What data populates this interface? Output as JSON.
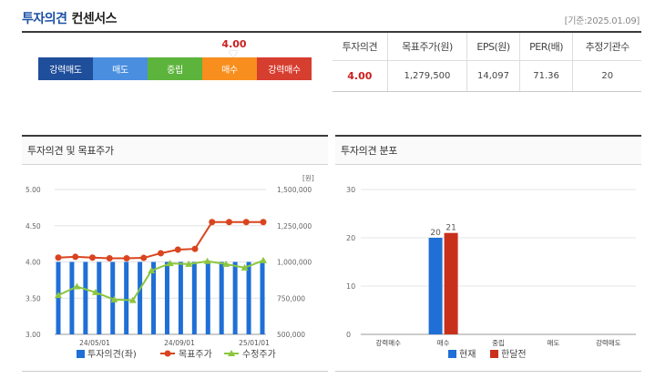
{
  "header": {
    "title_main": "투자의견",
    "title_sub": "컨센서스",
    "date": "[기준:2025.01.09]"
  },
  "opinion_scale": {
    "current": "4.00",
    "current_value": 4.0,
    "segments": [
      {
        "label": "강력매도",
        "color": "#1f4e9b"
      },
      {
        "label": "매도",
        "color": "#4a8ee0"
      },
      {
        "label": "중립",
        "color": "#5db43c"
      },
      {
        "label": "매수",
        "color": "#f78e1e"
      },
      {
        "label": "강력매수",
        "color": "#d63e2f"
      }
    ]
  },
  "consensus": {
    "headers": [
      "투자의견",
      "목표주가(원)",
      "EPS(원)",
      "PER(배)",
      "추정기관수"
    ],
    "values": [
      "4.00",
      "1,279,500",
      "14,097",
      "71.36",
      "20"
    ]
  },
  "panels": {
    "left_title": "투자의견 및 목표주가",
    "right_title": "투자의견 분포"
  },
  "chart_data": [
    {
      "type": "bar+line",
      "title": "투자의견 및 목표주가",
      "y_left": {
        "range": [
          3.0,
          5.0
        ],
        "ticks": [
          "5.00",
          "4.50",
          "4.00",
          "3.50",
          "3.00"
        ]
      },
      "y_right": {
        "unit": "[원]",
        "range": [
          500000,
          1500000
        ],
        "ticks": [
          "1,500,000",
          "1,250,000",
          "1,000,000",
          "750,000",
          "500,000"
        ]
      },
      "x_ticks": [
        "24/05/01",
        "24/09/01",
        "25/01/01"
      ],
      "bars": {
        "name": "투자의견(좌)",
        "color": "#1f6fd6",
        "values": [
          4.0,
          4.0,
          4.0,
          4.0,
          4.0,
          4.0,
          4.0,
          4.0,
          4.0,
          4.0,
          4.0,
          4.0,
          4.0,
          4.0,
          4.0,
          4.0
        ]
      },
      "lines": [
        {
          "name": "목표주가",
          "color": "#d9441f",
          "values": [
            1030000,
            1035000,
            1030000,
            1025000,
            1025000,
            1028000,
            1060000,
            1085000,
            1090000,
            1275000,
            1275000,
            1275000,
            1275000
          ]
        },
        {
          "name": "수정주가",
          "color": "#8cc63f",
          "values": [
            770000,
            830000,
            790000,
            740000,
            735000,
            940000,
            990000,
            985000,
            1005000,
            985000,
            960000,
            1010000
          ]
        }
      ],
      "legend": "bottom"
    },
    {
      "type": "bar",
      "title": "투자의견 분포",
      "categories": [
        "강력매수",
        "매수",
        "중립",
        "매도",
        "강력매도"
      ],
      "ylim": [
        0,
        30
      ],
      "y_ticks": [
        "30",
        "20",
        "10",
        "0"
      ],
      "series": [
        {
          "name": "현재",
          "color": "#1f6fd6",
          "values": [
            0,
            20,
            0,
            0,
            0
          ]
        },
        {
          "name": "한달전",
          "color": "#c9301c",
          "values": [
            0,
            21,
            0,
            0,
            0
          ]
        }
      ],
      "data_labels": [
        "20",
        "21"
      ],
      "legend": "bottom"
    }
  ]
}
